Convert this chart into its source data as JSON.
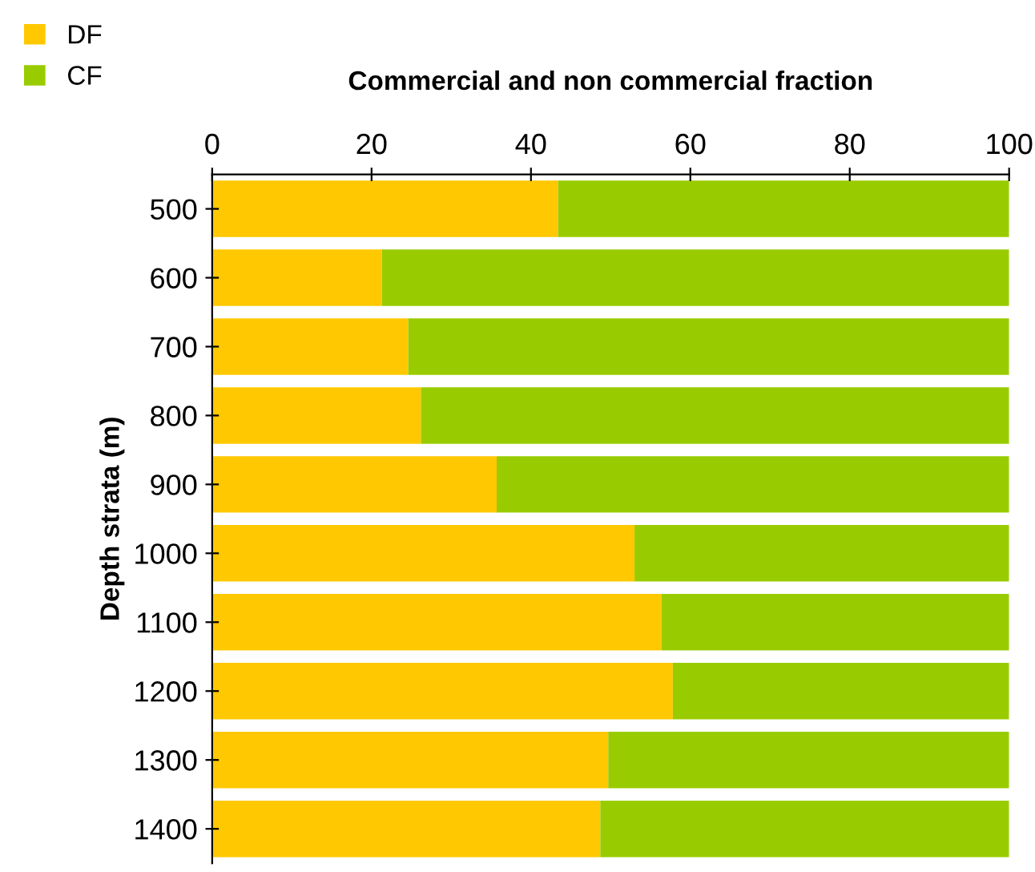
{
  "chart_data": {
    "type": "bar",
    "orientation": "horizontal",
    "stacked": true,
    "title": "Commercial and non commercial fraction",
    "ylabel": "Depth strata (m)",
    "categories": [
      "500",
      "600",
      "700",
      "800",
      "900",
      "1000",
      "1100",
      "1200",
      "1300",
      "1400"
    ],
    "series": [
      {
        "name": "DF",
        "color": "#ffc800",
        "values": [
          43.4,
          21.3,
          24.6,
          26.2,
          35.7,
          53.0,
          56.4,
          57.8,
          49.7,
          48.7
        ]
      },
      {
        "name": "CF",
        "color": "#99cc00",
        "values": [
          56.6,
          78.7,
          75.4,
          73.8,
          64.3,
          47.0,
          43.6,
          42.2,
          50.3,
          51.3
        ]
      }
    ],
    "xlim": [
      0,
      100
    ],
    "xticks": [
      0,
      20,
      40,
      60,
      80,
      100
    ],
    "grid": false,
    "legend": "top left"
  }
}
